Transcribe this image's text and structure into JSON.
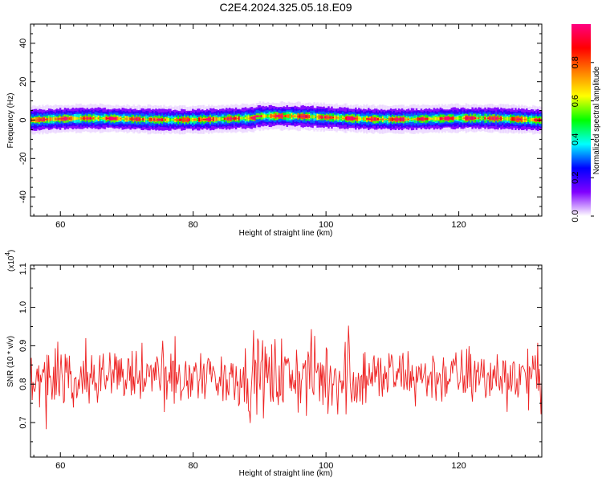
{
  "figure": {
    "title": "C2E4.2024.325.05.18.E09"
  },
  "chart_data": [
    {
      "type": "heatmap",
      "xlabel": "Height of straight line (km)",
      "ylabel": "Frequency (Hz)",
      "xlim": [
        55.5,
        132.5
      ],
      "ylim": [
        -50,
        50
      ],
      "x_ticks": [
        60,
        80,
        100,
        120
      ],
      "y_ticks": [
        -40,
        -20,
        0,
        20,
        40
      ],
      "centerline_freq_hz": 0,
      "band_halfwidth_hz": 4,
      "colorbar": {
        "label": "Normalized spectral amplitude",
        "range": [
          0,
          1
        ],
        "ticks": [
          "0.0",
          "0.2",
          "0.4",
          "0.6",
          "0.8"
        ],
        "colors": [
          "#ffffff",
          "#8000ff",
          "#0000ff",
          "#00ffff",
          "#00ff00",
          "#ffff00",
          "#ff8000",
          "#ff0000",
          "#ff0080"
        ]
      }
    },
    {
      "type": "line",
      "xlabel": "Height of straight line (km)",
      "ylabel": "SNR (10 * v/v)",
      "y_multiplier_label": "(x10",
      "y_multiplier_exp": "4",
      "xlim": [
        55.5,
        132.5
      ],
      "ylim": [
        0.61,
        1.11
      ],
      "x_ticks": [
        60,
        80,
        100,
        120
      ],
      "y_ticks": [
        "0.7",
        "0.8",
        "0.9",
        "1.0",
        "1.1"
      ],
      "series": [
        {
          "color": "#ee2222",
          "mean": 0.82,
          "sample_count": 620
        }
      ]
    }
  ]
}
